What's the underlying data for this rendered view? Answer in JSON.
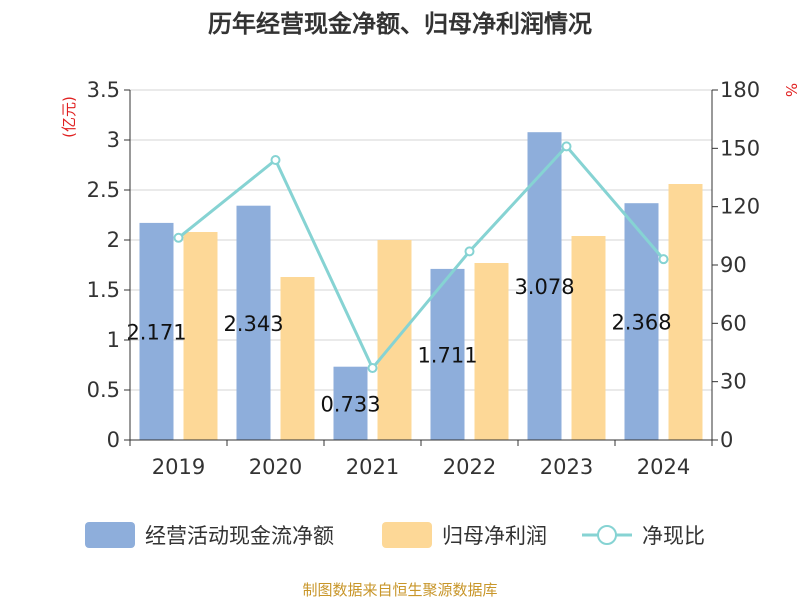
{
  "chart_data": {
    "type": "bar",
    "title": "历年经营现金净额、归母净利润情况",
    "categories": [
      "2019",
      "2020",
      "2021",
      "2022",
      "2023",
      "2024"
    ],
    "series": [
      {
        "name": "经营活动现金流净额",
        "type": "bar",
        "axis": "left",
        "color": "#8eaedb",
        "values": [
          2.171,
          2.343,
          0.733,
          1.711,
          3.078,
          2.368
        ],
        "labels": [
          "2.171",
          "2.343",
          "0.733",
          "1.711",
          "3.078",
          "2.368"
        ]
      },
      {
        "name": "归母净利润",
        "type": "bar",
        "axis": "left",
        "color": "#fdd897",
        "values": [
          2.08,
          1.63,
          2.0,
          1.77,
          2.04,
          2.56
        ]
      },
      {
        "name": "净现比",
        "type": "line",
        "axis": "right",
        "color": "#86d3d3",
        "values": [
          104,
          144,
          37,
          97,
          151,
          93
        ]
      }
    ],
    "y_left": {
      "unit": "(亿元)",
      "min": 0,
      "max": 3.5,
      "ticks": [
        "0",
        "0.5",
        "1",
        "1.5",
        "2",
        "2.5",
        "3",
        "3.5"
      ]
    },
    "y_right": {
      "unit": "%",
      "min": 0,
      "max": 180,
      "ticks": [
        "0",
        "30",
        "60",
        "90",
        "120",
        "150",
        "180"
      ]
    },
    "grid": true,
    "legend_position": "bottom"
  },
  "source": "制图数据来自恒生聚源数据库"
}
